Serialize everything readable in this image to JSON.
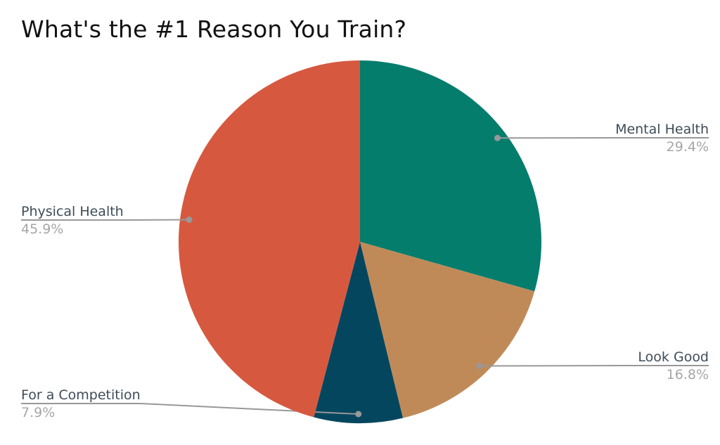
{
  "chart_data": {
    "type": "pie",
    "title": "What's the #1 Reason You Train?",
    "unit": "%",
    "rotation": "clockwise-from-12-oclock",
    "legend": "none",
    "background": "#ffffff",
    "slices": [
      {
        "label": "Mental Health",
        "value": 29.4,
        "display": "29.4%",
        "color": "#047d6d",
        "label_side": "right"
      },
      {
        "label": "Look Good",
        "value": 16.8,
        "display": "16.8%",
        "color": "#c08a58",
        "label_side": "right"
      },
      {
        "label": "For a Competition",
        "value": 7.9,
        "display": "7.9%",
        "color": "#04465e",
        "label_side": "left"
      },
      {
        "label": "Physical Health",
        "value": 45.9,
        "display": "45.9%",
        "color": "#d6593f",
        "label_side": "left"
      }
    ],
    "label_colors": {
      "name": "#3e4c59",
      "percent": "#a6a6a6",
      "leader_line": "#98989a"
    }
  }
}
